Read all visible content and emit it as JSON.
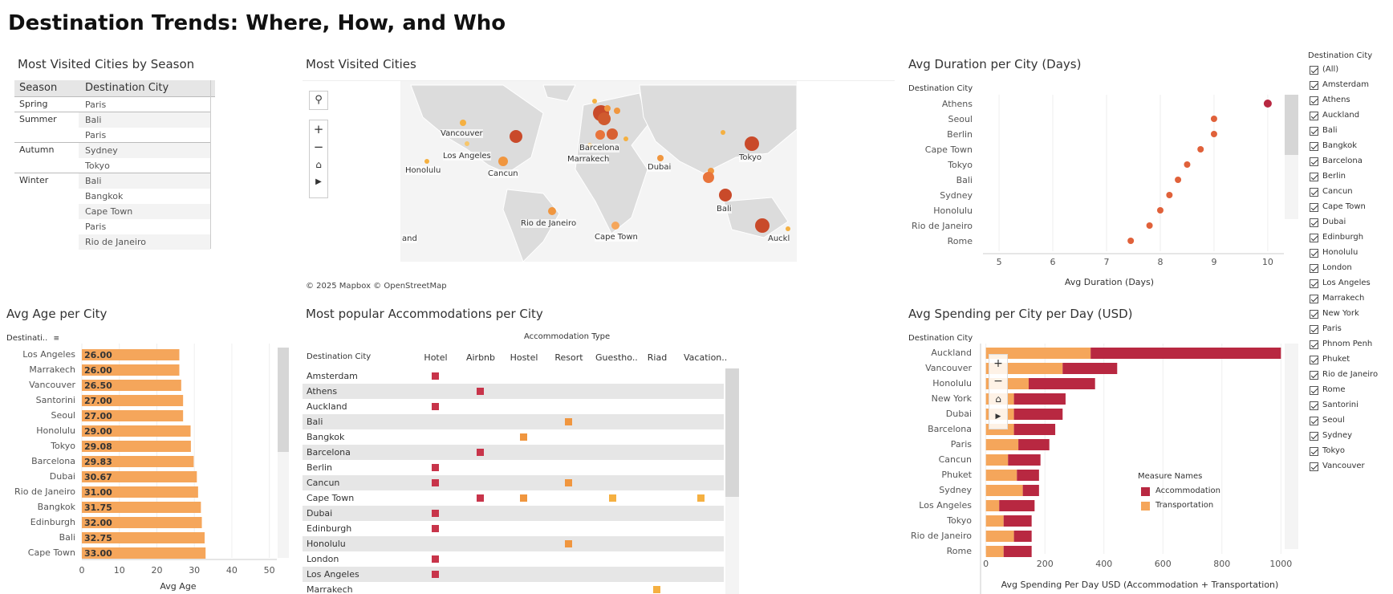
{
  "dashboard": {
    "title": "Destination Trends: Where, How, and Who"
  },
  "season_table": {
    "title": "Most Visited Cities by Season",
    "headers": [
      "Season",
      "Destination City"
    ],
    "groups": [
      {
        "season": "Spring",
        "cities": [
          "Paris"
        ]
      },
      {
        "season": "Summer",
        "cities": [
          "Bali",
          "Paris"
        ]
      },
      {
        "season": "Autumn",
        "cities": [
          "Sydney",
          "Tokyo"
        ]
      },
      {
        "season": "Winter",
        "cities": [
          "Bali",
          "Bangkok",
          "Cape Town",
          "Paris",
          "Rio de Janeiro"
        ]
      }
    ]
  },
  "map": {
    "title": "Most Visited Cities",
    "attribution": "© 2025 Mapbox  © OpenStreetMap",
    "labels": [
      "Vancouver",
      "Los Angeles",
      "Honolulu",
      "Cancun",
      "Barcelona",
      "Marrakech",
      "Dubai",
      "Tokyo",
      "Bali",
      "Rio de Janeiro",
      "Cape Town",
      "Auckland"
    ],
    "label_texts": {
      "vancouver": "Vancouver",
      "los_angeles": "Los Angeles",
      "honolulu": "Honolulu",
      "cancun": "Cancun",
      "barcelona": "Barcelona",
      "marrakech": "Marrakech",
      "dubai": "Dubai",
      "tokyo": "Tokyo",
      "bali": "Bali",
      "rio": "Rio de Janeiro",
      "cape_town": "Cape Town",
      "auckland": "Auckl",
      "auckland_left": "and"
    }
  },
  "legend": {
    "title": "Destination City",
    "items": [
      "(All)",
      "Amsterdam",
      "Athens",
      "Auckland",
      "Bali",
      "Bangkok",
      "Barcelona",
      "Berlin",
      "Cancun",
      "Cape Town",
      "Dubai",
      "Edinburgh",
      "Honolulu",
      "London",
      "Los Angeles",
      "Marrakech",
      "New York",
      "Paris",
      "Phnom Penh",
      "Phuket",
      "Rio de Janeiro",
      "Rome",
      "Santorini",
      "Seoul",
      "Sydney",
      "Tokyo",
      "Vancouver"
    ]
  },
  "accommodation": {
    "title": "Most popular Accommodations per City",
    "column_group": "Accommodation Type",
    "row_header": "Destination City",
    "columns": [
      "Hotel",
      "Airbnb",
      "Hostel",
      "Resort",
      "Guestho..",
      "Riad",
      "Vacation.."
    ],
    "rows": [
      {
        "city": "Amsterdam",
        "marks": [
          "Hotel"
        ]
      },
      {
        "city": "Athens",
        "marks": [
          "Airbnb"
        ]
      },
      {
        "city": "Auckland",
        "marks": [
          "Hotel"
        ]
      },
      {
        "city": "Bali",
        "marks": [
          "Resort"
        ]
      },
      {
        "city": "Bangkok",
        "marks": [
          "Hostel"
        ]
      },
      {
        "city": "Barcelona",
        "marks": [
          "Airbnb"
        ]
      },
      {
        "city": "Berlin",
        "marks": [
          "Hotel"
        ]
      },
      {
        "city": "Cancun",
        "marks": [
          "Hotel",
          "Resort"
        ]
      },
      {
        "city": "Cape Town",
        "marks": [
          "Airbnb",
          "Hostel",
          "Guestho..",
          "Vacation.."
        ]
      },
      {
        "city": "Dubai",
        "marks": [
          "Hotel"
        ]
      },
      {
        "city": "Edinburgh",
        "marks": [
          "Hotel"
        ]
      },
      {
        "city": "Honolulu",
        "marks": [
          "Resort"
        ]
      },
      {
        "city": "London",
        "marks": [
          "Hotel"
        ]
      },
      {
        "city": "Los Angeles",
        "marks": [
          "Hotel"
        ]
      },
      {
        "city": "Marrakech",
        "marks": [
          "Riad"
        ]
      }
    ]
  },
  "colors": {
    "accommodation": "#b82841",
    "transportation": "#f5a65b",
    "dot_dark": "#c0392b",
    "dot_mid": "#e8743b",
    "dot_light": "#f5b041"
  },
  "chart_data": [
    {
      "type": "scatter",
      "title": "Avg Duration per City (Days)",
      "row_header": "Destination City",
      "categories": [
        "Athens",
        "Seoul",
        "Berlin",
        "Cape Town",
        "Tokyo",
        "Bali",
        "Sydney",
        "Honolulu",
        "Rio de Janeiro",
        "Rome"
      ],
      "values": [
        10.0,
        9.0,
        9.0,
        8.75,
        8.5,
        8.33,
        8.17,
        8.0,
        7.8,
        7.45
      ],
      "xlabel": "Avg Duration (Days)",
      "xlim": [
        4.7,
        10.3
      ],
      "xticks": [
        5,
        6,
        7,
        8,
        9,
        10
      ]
    },
    {
      "type": "bar",
      "title": "Avg Age per City",
      "row_header": "Destinati..",
      "categories": [
        "Los Angeles",
        "Marrakech",
        "Vancouver",
        "Santorini",
        "Seoul",
        "Honolulu",
        "Tokyo",
        "Barcelona",
        "Dubai",
        "Rio de Janeiro",
        "Bangkok",
        "Edinburgh",
        "Bali",
        "Cape Town"
      ],
      "values": [
        26.0,
        26.0,
        26.5,
        27.0,
        27.0,
        29.0,
        29.08,
        29.83,
        30.67,
        31.0,
        31.75,
        32.0,
        32.75,
        33.0
      ],
      "value_labels": [
        "26.00",
        "26.00",
        "26.50",
        "27.00",
        "27.00",
        "29.00",
        "29.08",
        "29.83",
        "30.67",
        "31.00",
        "31.75",
        "32.00",
        "32.75",
        "33.00"
      ],
      "xlabel": "Avg Age",
      "xlim": [
        0,
        52
      ],
      "xticks": [
        0,
        10,
        20,
        30,
        40,
        50
      ]
    },
    {
      "type": "bar",
      "title": "Avg Spending per City per Day (USD)",
      "row_header": "Destination City",
      "categories": [
        "Auckland",
        "Vancouver",
        "Honolulu",
        "New York",
        "Dubai",
        "Barcelona",
        "Paris",
        "Cancun",
        "Phuket",
        "Sydney",
        "Los Angeles",
        "Tokyo",
        "Rio de Janeiro",
        "Rome"
      ],
      "series": [
        {
          "name": "Transportation",
          "values": [
            355,
            260,
            145,
            95,
            95,
            95,
            110,
            75,
            105,
            125,
            45,
            60,
            95,
            60
          ]
        },
        {
          "name": "Accommodation",
          "values": [
            645,
            185,
            225,
            175,
            165,
            140,
            105,
            110,
            75,
            55,
            120,
            95,
            60,
            95
          ]
        }
      ],
      "xlabel": "Avg Spending Per Day USD (Accommodation + Transportation)",
      "legend_title": "Measure Names",
      "legend": [
        "Accommodation",
        "Transportation"
      ],
      "xlim": [
        -10,
        1010
      ],
      "xticks": [
        0,
        200,
        400,
        600,
        800,
        1000
      ]
    }
  ]
}
